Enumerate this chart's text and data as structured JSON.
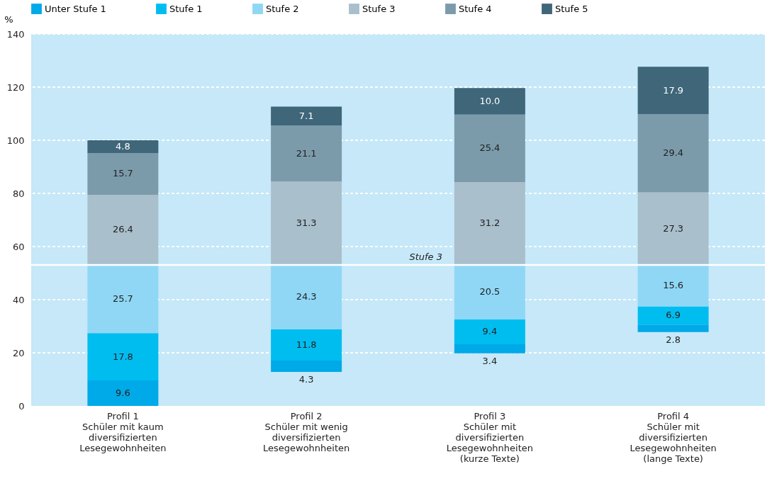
{
  "chart_data": {
    "type": "bar",
    "ylabel": "%",
    "categories": [
      "Profil 1\nSchüler mit kaum\ndiversifizierten\nLesegewohnheiten",
      "Profil 2\nSchüler mit wenig\ndiversifizierten\nLesegewohnheiten",
      "Profil 3\nSchüler mit\ndiversifizierten\nLesegewohnheiten\n(kurze Texte)",
      "Profil 4\nSchüler mit\ndiversifizierten\nLesegewohnheiten\n(lange Texte)"
    ],
    "series": [
      {
        "name": "Unter Stufe 1",
        "color": "#00a9e8",
        "values": [
          9.6,
          4.3,
          3.4,
          2.8
        ],
        "base": [
          0,
          12.8,
          19.8,
          27.8
        ],
        "value_labels": [
          "9.6",
          "4.3",
          "3.4",
          "2.8"
        ]
      },
      {
        "name": "Stufe 1",
        "color": "#00bdf0",
        "values": [
          17.8,
          11.8,
          9.4,
          6.9
        ],
        "base": [
          9.6,
          17.1,
          23.2,
          30.6
        ],
        "value_labels": [
          "17.8",
          "11.8",
          "9.4",
          "6.9"
        ]
      },
      {
        "name": "Stufe 2",
        "color": "#8fd7f5",
        "values": [
          25.7,
          24.3,
          20.5,
          15.6
        ],
        "base": [
          27.4,
          28.9,
          32.6,
          37.5
        ],
        "value_labels": [
          "25.7",
          "24.3",
          "20.5",
          "15.6"
        ]
      },
      {
        "name": "Stufe 3",
        "color": "#a9bfcb",
        "values": [
          26.4,
          31.3,
          31.2,
          27.3
        ],
        "base": [
          53.1,
          53.2,
          53.1,
          53.1
        ],
        "value_labels": [
          "26.4",
          "31.3",
          "31.2",
          "27.3"
        ]
      },
      {
        "name": "Stufe 4",
        "color": "#7b9bab",
        "values": [
          15.7,
          21.1,
          25.4,
          29.4
        ],
        "base": [
          79.5,
          84.5,
          84.3,
          80.4
        ],
        "value_labels": [
          "15.7",
          "21.1",
          "25.4",
          "29.4"
        ]
      },
      {
        "name": "Stufe 5",
        "color": "#3f6679",
        "values": [
          4.8,
          7.1,
          10.0,
          17.9
        ],
        "base": [
          95.2,
          105.6,
          109.7,
          109.8
        ],
        "value_labels": [
          "4.8",
          "7.1",
          "10.0",
          "17.9"
        ]
      }
    ],
    "ylim": [
      0,
      140
    ],
    "yticks": [
      0,
      20,
      40,
      60,
      80,
      100,
      120,
      140
    ],
    "grid": "y",
    "legend": "top",
    "ref_lines": [
      {
        "axis": "y",
        "value": 53.1,
        "label": "Stufe 3",
        "color": "#ffffff",
        "line_style": "solid"
      }
    ]
  }
}
